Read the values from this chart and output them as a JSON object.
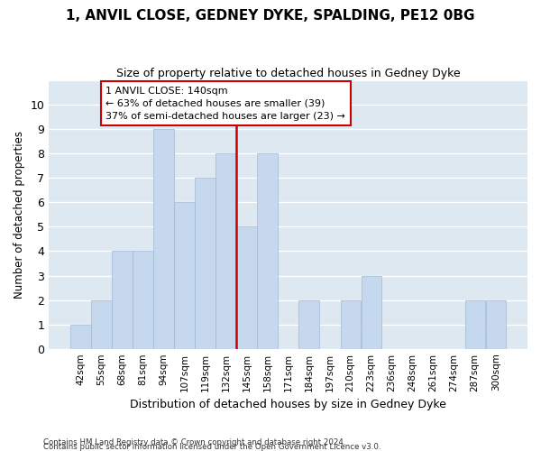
{
  "title": "1, ANVIL CLOSE, GEDNEY DYKE, SPALDING, PE12 0BG",
  "subtitle": "Size of property relative to detached houses in Gedney Dyke",
  "xlabel": "Distribution of detached houses by size in Gedney Dyke",
  "ylabel": "Number of detached properties",
  "categories": [
    "42sqm",
    "55sqm",
    "68sqm",
    "81sqm",
    "94sqm",
    "107sqm",
    "119sqm",
    "132sqm",
    "145sqm",
    "158sqm",
    "171sqm",
    "184sqm",
    "197sqm",
    "210sqm",
    "223sqm",
    "236sqm",
    "248sqm",
    "261sqm",
    "274sqm",
    "287sqm",
    "300sqm"
  ],
  "values": [
    1,
    2,
    4,
    4,
    9,
    6,
    7,
    8,
    5,
    8,
    0,
    2,
    0,
    2,
    3,
    0,
    0,
    0,
    0,
    2,
    2
  ],
  "bar_color": "#c5d8ed",
  "bar_edge_color": "#a0b8d8",
  "reference_line_index": 8,
  "reference_line_color": "#cc0000",
  "annotation_text": "1 ANVIL CLOSE: 140sqm\n← 63% of detached houses are smaller (39)\n37% of semi-detached houses are larger (23) →",
  "annotation_box_color": "#ffffff",
  "annotation_box_edge_color": "#cc0000",
  "ylim": [
    0,
    11
  ],
  "yticks": [
    0,
    1,
    2,
    3,
    4,
    5,
    6,
    7,
    8,
    9,
    10,
    11
  ],
  "background_color": "#dde8f0",
  "grid_color": "#ffffff",
  "title_fontsize": 11,
  "subtitle_fontsize": 9,
  "footer1": "Contains HM Land Registry data © Crown copyright and database right 2024.",
  "footer2": "Contains public sector information licensed under the Open Government Licence v3.0."
}
